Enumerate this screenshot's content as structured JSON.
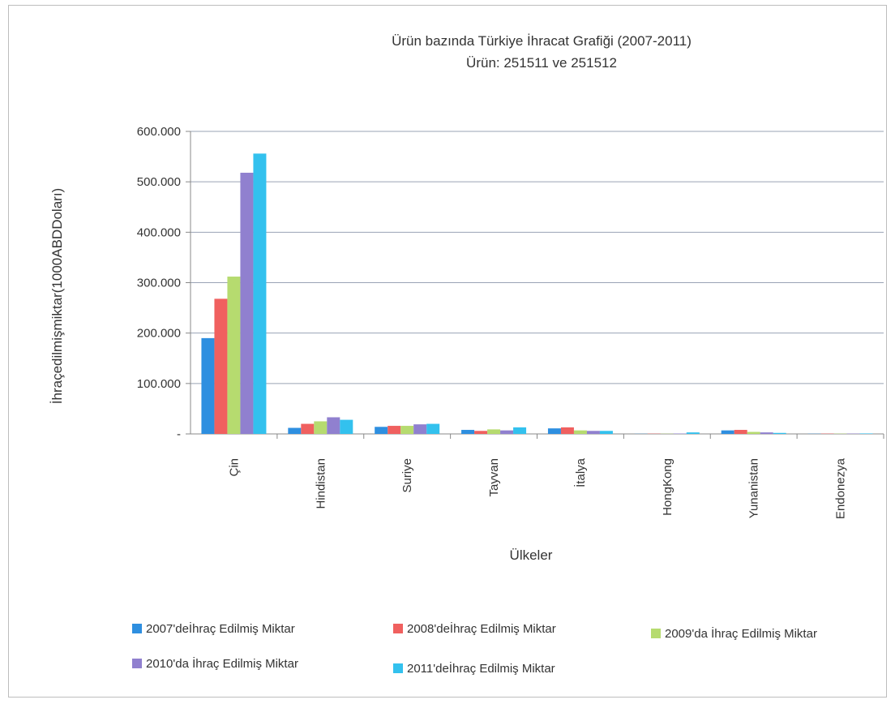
{
  "chart_data": {
    "type": "bar",
    "title": "Ürün bazında Türkiye İhracat Grafiği (2007-2011)",
    "subtitle": "Ürün: 251511 ve 251512",
    "xlabel": "Ülkeler",
    "ylabel": "İhraçedilmişmiktar(1000ABDDoları)",
    "ylim": [
      0,
      600000
    ],
    "yticks": [
      0,
      100000,
      200000,
      300000,
      400000,
      500000,
      600000
    ],
    "ytick_labels": [
      "-",
      "100.000",
      "200.000",
      "300.000",
      "400.000",
      "500.000",
      "600.000"
    ],
    "grid": true,
    "legend_position": "bottom",
    "categories": [
      "Çin",
      "Hindistan",
      "Suriye",
      "Tayvan",
      "İtalya",
      "HongKong",
      "Yunanistan",
      "Endonezya"
    ],
    "series": [
      {
        "name": "2007'deİhraç Edilmiş Miktar",
        "color": "#2e8fe0",
        "values": [
          190000,
          12000,
          14000,
          8000,
          11000,
          300,
          7000,
          400
        ]
      },
      {
        "name": "2008'deİhraç Edilmiş Miktar",
        "color": "#f0605f",
        "values": [
          268000,
          20000,
          16000,
          6000,
          13000,
          500,
          8000,
          600
        ]
      },
      {
        "name": "2009'da İhraç Edilmiş Miktar",
        "color": "#b6db6f",
        "values": [
          312000,
          25000,
          16000,
          9000,
          7000,
          400,
          4000,
          500
        ]
      },
      {
        "name": "2010'da İhraç Edilmiş Miktar",
        "color": "#9080cf",
        "values": [
          518000,
          33000,
          19000,
          7000,
          6000,
          800,
          3000,
          700
        ]
      },
      {
        "name": "2011'deİhraç Edilmiş Miktar",
        "color": "#33c1ee",
        "values": [
          556000,
          28000,
          20000,
          13000,
          6000,
          3000,
          2000,
          900
        ]
      }
    ]
  }
}
